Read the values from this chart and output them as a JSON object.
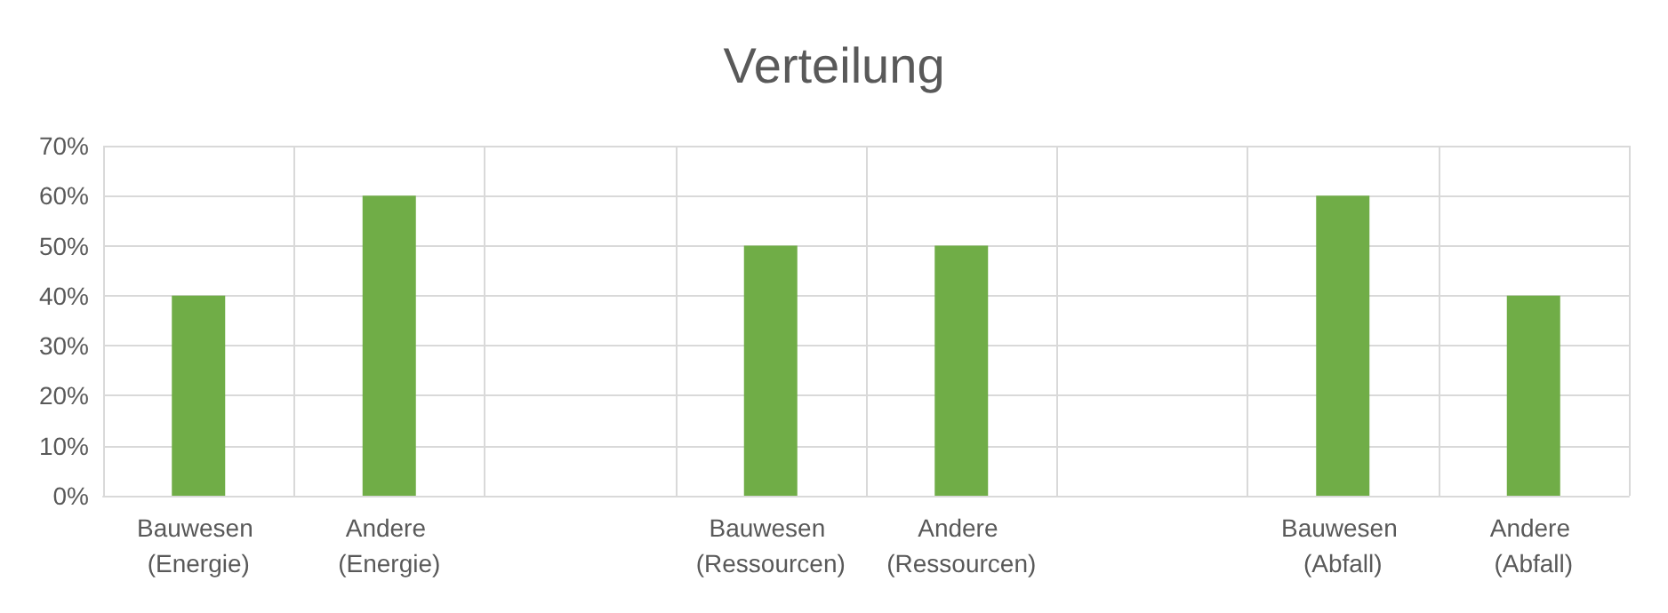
{
  "chart_data": {
    "type": "bar",
    "title": "Verteilung",
    "categories": [
      "Bauwesen (Energie)",
      "Andere (Energie)",
      null,
      "Bauwesen (Ressourcen)",
      "Andere (Ressourcen)",
      null,
      "Bauwesen (Abfall)",
      "Andere (Abfall)"
    ],
    "values": [
      40,
      60,
      null,
      50,
      50,
      null,
      60,
      40
    ],
    "color": "#70ad47",
    "ylim": [
      0,
      70
    ],
    "yticks": [
      {
        "value": 0,
        "label": "0%"
      },
      {
        "value": 10,
        "label": "10%"
      },
      {
        "value": 20,
        "label": "20%"
      },
      {
        "value": 30,
        "label": "30%"
      },
      {
        "value": 40,
        "label": "40%"
      },
      {
        "value": 50,
        "label": "50%"
      },
      {
        "value": 60,
        "label": "60%"
      },
      {
        "value": 70,
        "label": "70%"
      }
    ],
    "grid": true
  }
}
